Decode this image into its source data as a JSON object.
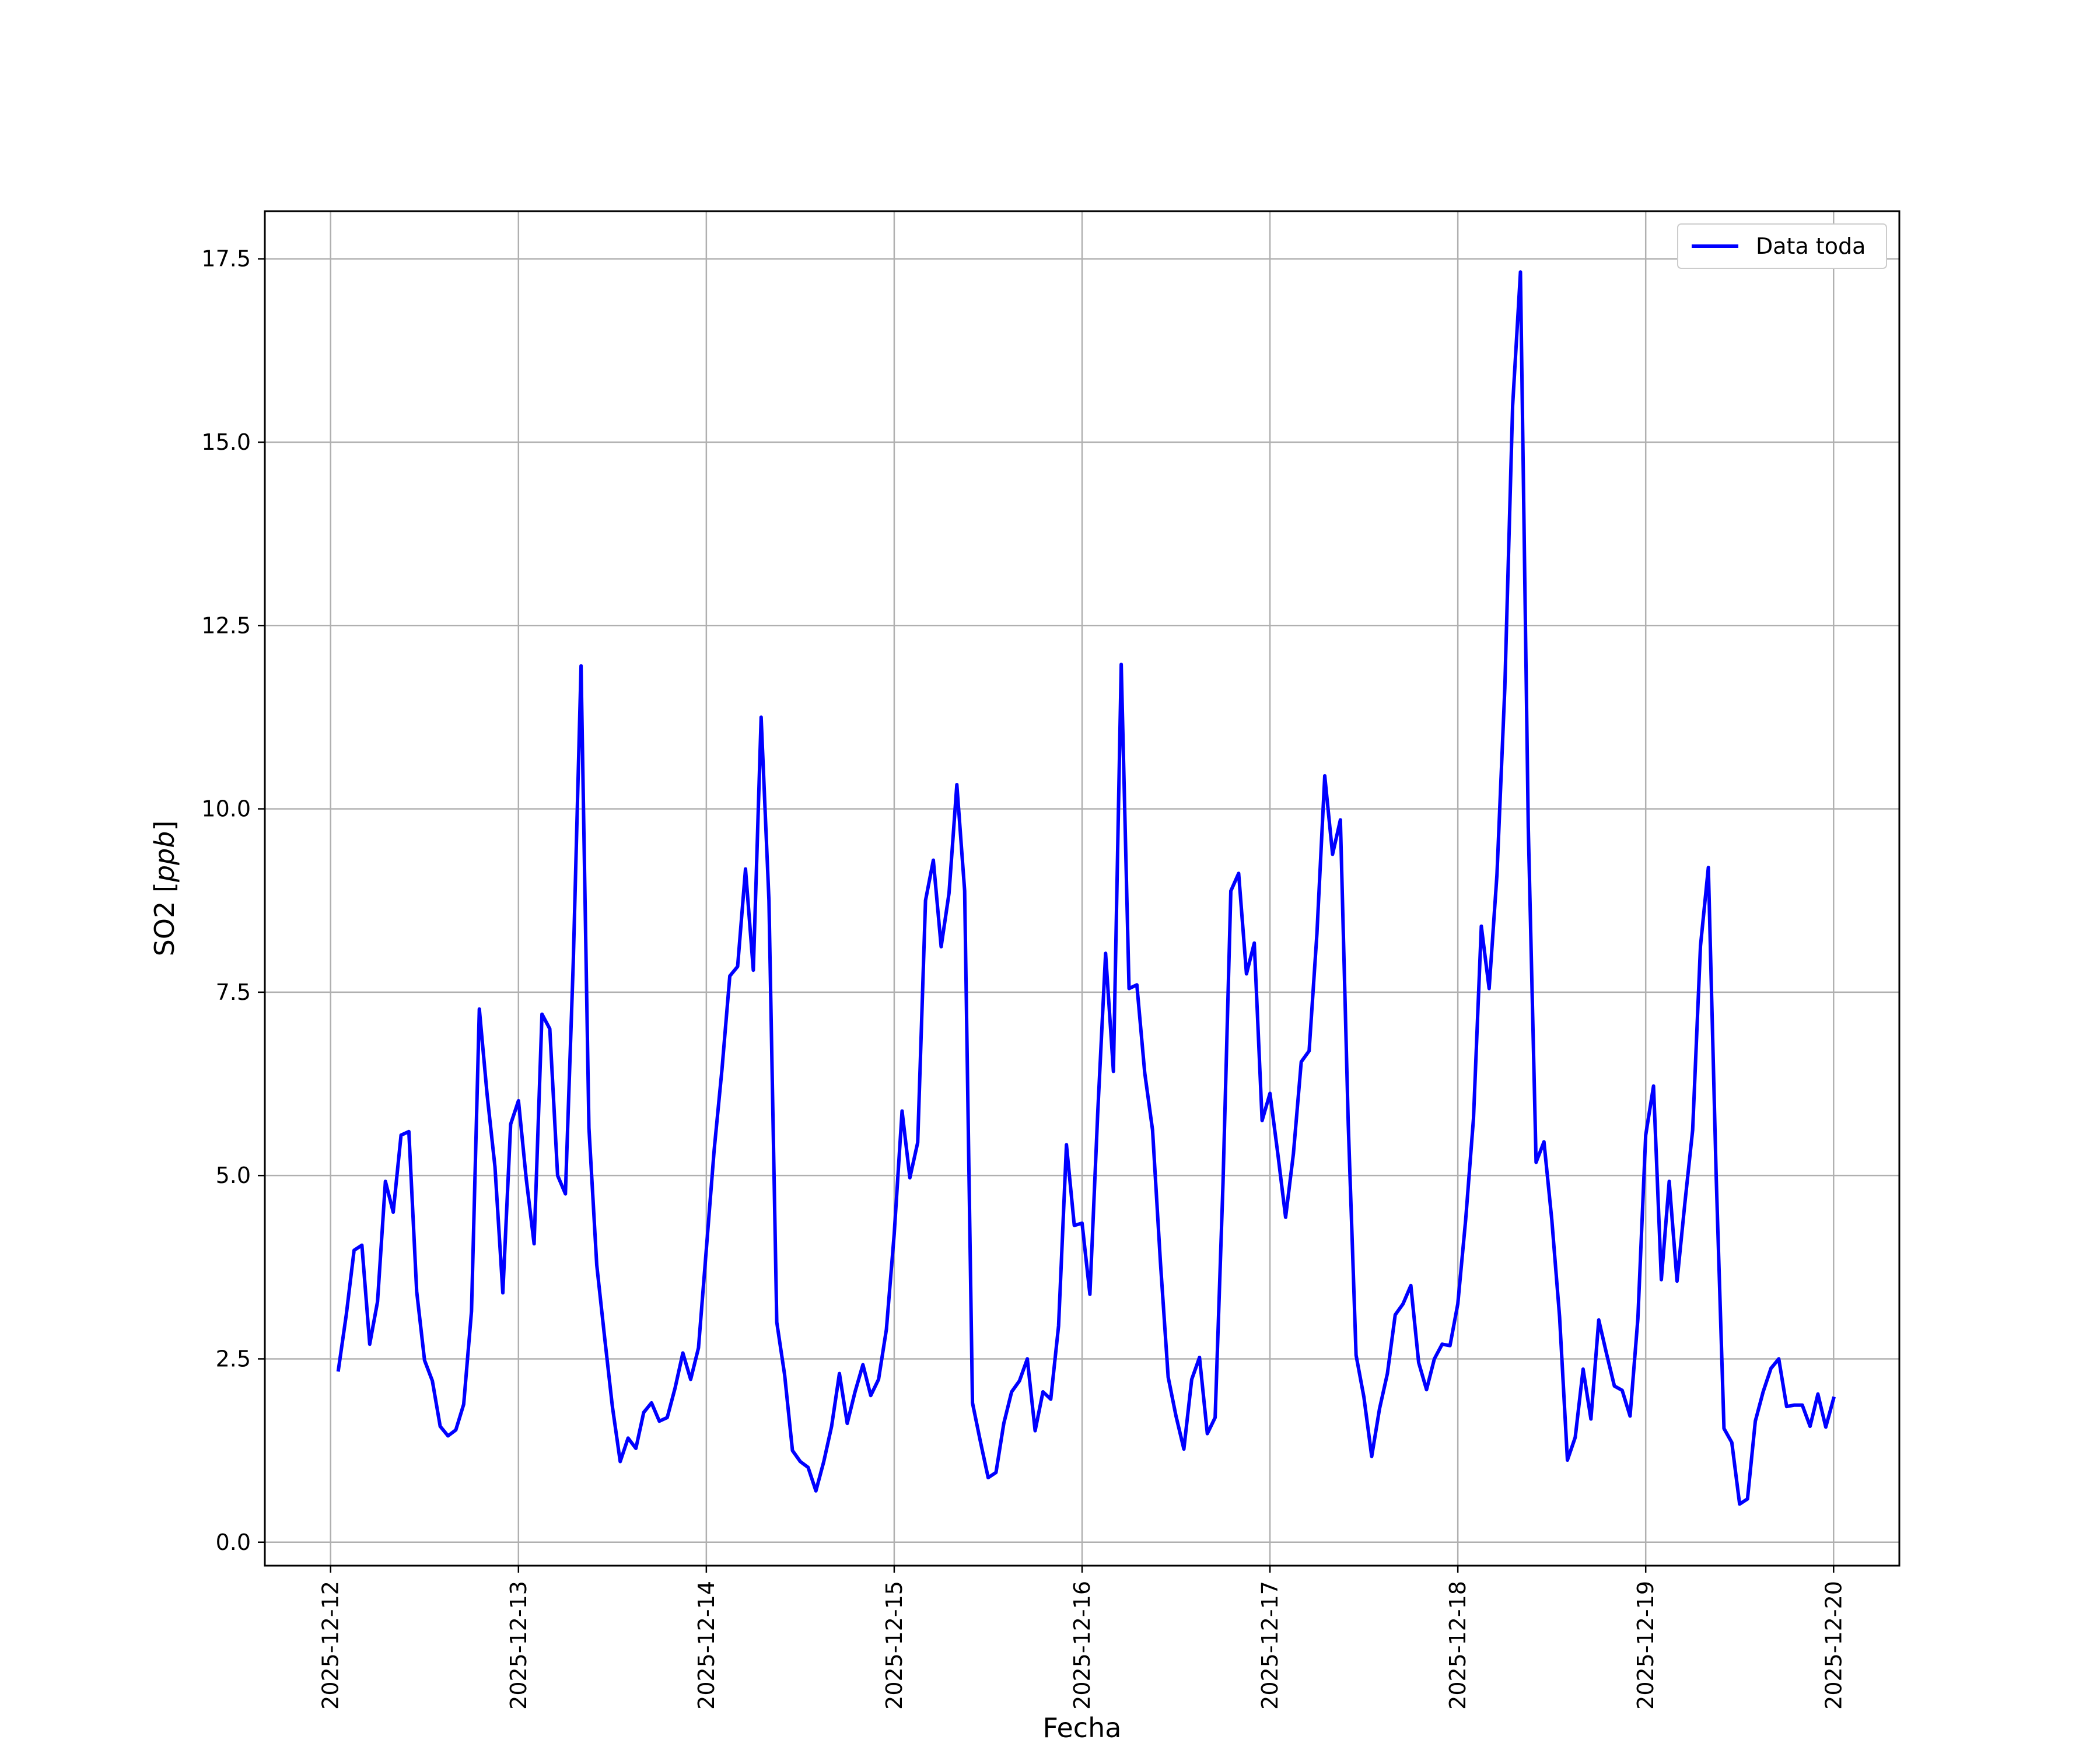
{
  "chart_data": {
    "type": "line",
    "title": "",
    "xlabel": "Fecha",
    "ylabel": "SO2 [ppb]",
    "ylabel_prefix": "SO2 [",
    "ylabel_unit": "ppb",
    "ylabel_suffix": "]",
    "xlim": [
      "2025-12-11T15:36",
      "2025-12-20T08:24"
    ],
    "ylim": [
      -0.32,
      18.15
    ],
    "x_ticks": [
      "2025-12-12",
      "2025-12-13",
      "2025-12-14",
      "2025-12-15",
      "2025-12-16",
      "2025-12-17",
      "2025-12-18",
      "2025-12-19",
      "2025-12-20"
    ],
    "y_ticks": [
      0.0,
      2.5,
      5.0,
      7.5,
      10.0,
      12.5,
      15.0,
      17.5
    ],
    "y_tick_labels": [
      "0.0",
      "2.5",
      "5.0",
      "7.5",
      "10.0",
      "12.5",
      "15.0",
      "17.5"
    ],
    "grid": true,
    "legend_position": "top-right",
    "colors": {
      "series": "#0000ff",
      "grid": "#b0b0b0",
      "frame": "#000000"
    },
    "series": [
      {
        "name": "Data toda",
        "x": [
          "2025-12-12T01:00",
          "2025-12-12T02:00",
          "2025-12-12T03:00",
          "2025-12-12T04:00",
          "2025-12-12T05:00",
          "2025-12-12T06:00",
          "2025-12-12T07:00",
          "2025-12-12T08:00",
          "2025-12-12T09:00",
          "2025-12-12T10:00",
          "2025-12-12T11:00",
          "2025-12-12T12:00",
          "2025-12-12T13:00",
          "2025-12-12T14:00",
          "2025-12-12T15:00",
          "2025-12-12T16:00",
          "2025-12-12T17:00",
          "2025-12-12T18:00",
          "2025-12-12T19:00",
          "2025-12-12T20:00",
          "2025-12-12T21:00",
          "2025-12-12T22:00",
          "2025-12-12T23:00",
          "2025-12-13T00:00",
          "2025-12-13T01:00",
          "2025-12-13T02:00",
          "2025-12-13T03:00",
          "2025-12-13T04:00",
          "2025-12-13T05:00",
          "2025-12-13T06:00",
          "2025-12-13T07:00",
          "2025-12-13T08:00",
          "2025-12-13T09:00",
          "2025-12-13T10:00",
          "2025-12-13T11:00",
          "2025-12-13T12:00",
          "2025-12-13T13:00",
          "2025-12-13T14:00",
          "2025-12-13T15:00",
          "2025-12-13T16:00",
          "2025-12-13T17:00",
          "2025-12-13T18:00",
          "2025-12-13T19:00",
          "2025-12-13T20:00",
          "2025-12-13T21:00",
          "2025-12-13T22:00",
          "2025-12-13T23:00",
          "2025-12-14T00:00",
          "2025-12-14T01:00",
          "2025-12-14T02:00",
          "2025-12-14T03:00",
          "2025-12-14T04:00",
          "2025-12-14T05:00",
          "2025-12-14T06:00",
          "2025-12-14T07:00",
          "2025-12-14T08:00",
          "2025-12-14T09:00",
          "2025-12-14T10:00",
          "2025-12-14T11:00",
          "2025-12-14T12:00",
          "2025-12-14T13:00",
          "2025-12-14T14:00",
          "2025-12-14T15:00",
          "2025-12-14T16:00",
          "2025-12-14T17:00",
          "2025-12-14T18:00",
          "2025-12-14T19:00",
          "2025-12-14T20:00",
          "2025-12-14T21:00",
          "2025-12-14T22:00",
          "2025-12-14T23:00",
          "2025-12-15T00:00",
          "2025-12-15T01:00",
          "2025-12-15T02:00",
          "2025-12-15T03:00",
          "2025-12-15T04:00",
          "2025-12-15T05:00",
          "2025-12-15T06:00",
          "2025-12-15T07:00",
          "2025-12-15T08:00",
          "2025-12-15T09:00",
          "2025-12-15T10:00",
          "2025-12-15T11:00",
          "2025-12-15T12:00",
          "2025-12-15T13:00",
          "2025-12-15T14:00",
          "2025-12-15T15:00",
          "2025-12-15T16:00",
          "2025-12-15T17:00",
          "2025-12-15T18:00",
          "2025-12-15T19:00",
          "2025-12-15T20:00",
          "2025-12-15T21:00",
          "2025-12-15T22:00",
          "2025-12-15T23:00",
          "2025-12-16T00:00",
          "2025-12-16T01:00",
          "2025-12-16T02:00",
          "2025-12-16T03:00",
          "2025-12-16T04:00",
          "2025-12-16T05:00",
          "2025-12-16T06:00",
          "2025-12-16T07:00",
          "2025-12-16T08:00",
          "2025-12-16T09:00",
          "2025-12-16T10:00",
          "2025-12-16T11:00",
          "2025-12-16T12:00",
          "2025-12-16T13:00",
          "2025-12-16T14:00",
          "2025-12-16T15:00",
          "2025-12-16T16:00",
          "2025-12-16T17:00",
          "2025-12-16T18:00",
          "2025-12-16T19:00",
          "2025-12-16T20:00",
          "2025-12-16T21:00",
          "2025-12-16T22:00",
          "2025-12-16T23:00",
          "2025-12-17T00:00",
          "2025-12-17T01:00",
          "2025-12-17T02:00",
          "2025-12-17T03:00",
          "2025-12-17T04:00",
          "2025-12-17T05:00",
          "2025-12-17T06:00",
          "2025-12-17T07:00",
          "2025-12-17T08:00",
          "2025-12-17T09:00",
          "2025-12-17T10:00",
          "2025-12-17T11:00",
          "2025-12-17T12:00",
          "2025-12-17T13:00",
          "2025-12-17T14:00",
          "2025-12-17T15:00",
          "2025-12-17T16:00",
          "2025-12-17T17:00",
          "2025-12-17T18:00",
          "2025-12-17T19:00",
          "2025-12-17T20:00",
          "2025-12-17T21:00",
          "2025-12-17T22:00",
          "2025-12-17T23:00",
          "2025-12-18T00:00",
          "2025-12-18T01:00",
          "2025-12-18T02:00",
          "2025-12-18T03:00",
          "2025-12-18T04:00",
          "2025-12-18T05:00",
          "2025-12-18T06:00",
          "2025-12-18T07:00",
          "2025-12-18T08:00",
          "2025-12-18T09:00",
          "2025-12-18T10:00",
          "2025-12-18T11:00",
          "2025-12-18T12:00",
          "2025-12-18T13:00",
          "2025-12-18T14:00",
          "2025-12-18T15:00",
          "2025-12-18T16:00",
          "2025-12-18T17:00",
          "2025-12-18T18:00",
          "2025-12-18T19:00",
          "2025-12-18T20:00",
          "2025-12-18T21:00",
          "2025-12-18T22:00",
          "2025-12-18T23:00",
          "2025-12-19T00:00",
          "2025-12-19T01:00",
          "2025-12-19T02:00",
          "2025-12-19T03:00",
          "2025-12-19T04:00",
          "2025-12-19T05:00",
          "2025-12-19T06:00",
          "2025-12-19T07:00",
          "2025-12-19T08:00",
          "2025-12-19T09:00",
          "2025-12-19T10:00",
          "2025-12-19T11:00",
          "2025-12-19T12:00",
          "2025-12-19T13:00",
          "2025-12-19T14:00",
          "2025-12-19T15:00",
          "2025-12-19T16:00",
          "2025-12-19T17:00",
          "2025-12-19T18:00",
          "2025-12-19T19:00",
          "2025-12-19T20:00",
          "2025-12-19T21:00",
          "2025-12-19T22:00",
          "2025-12-19T23:00",
          "2025-12-20T00:00"
        ],
        "values": [
          2.35,
          3.1,
          3.98,
          4.05,
          2.7,
          3.28,
          4.92,
          4.5,
          5.55,
          5.6,
          3.42,
          2.48,
          2.2,
          1.58,
          1.45,
          1.53,
          1.88,
          3.15,
          7.27,
          6.1,
          5.12,
          3.4,
          5.7,
          6.02,
          4.95,
          4.07,
          7.2,
          7.0,
          5.0,
          4.75,
          7.9,
          11.95,
          5.65,
          3.78,
          2.8,
          1.85,
          1.1,
          1.42,
          1.28,
          1.77,
          1.9,
          1.65,
          1.7,
          2.1,
          2.58,
          2.22,
          2.65,
          4.0,
          5.35,
          6.45,
          7.72,
          7.85,
          9.18,
          7.8,
          11.25,
          8.75,
          3.0,
          2.28,
          1.25,
          1.1,
          1.02,
          0.7,
          1.1,
          1.58,
          2.3,
          1.62,
          2.05,
          2.42,
          2.0,
          2.22,
          2.9,
          4.2,
          5.88,
          4.97,
          5.45,
          8.75,
          9.3,
          8.12,
          8.85,
          10.33,
          8.88,
          1.9,
          1.38,
          0.88,
          0.95,
          1.62,
          2.05,
          2.2,
          2.5,
          1.52,
          2.05,
          1.95,
          2.95,
          5.42,
          4.32,
          4.35,
          3.38,
          5.85,
          8.03,
          6.42,
          11.97,
          7.55,
          7.6,
          6.4,
          5.62,
          3.83,
          2.25,
          1.72,
          1.27,
          2.22,
          2.52,
          1.48,
          1.7,
          4.9,
          8.88,
          9.12,
          7.75,
          8.17,
          5.75,
          6.12,
          5.3,
          4.43,
          5.3,
          6.55,
          6.7,
          8.3,
          10.45,
          9.38,
          9.85,
          5.7,
          2.55,
          1.98,
          1.17,
          1.82,
          2.3,
          3.1,
          3.25,
          3.5,
          2.45,
          2.08,
          2.5,
          2.7,
          2.68,
          3.25,
          4.4,
          5.78,
          8.4,
          7.55,
          9.1,
          11.65,
          15.5,
          17.32,
          9.75,
          5.18,
          5.46,
          4.4,
          3.07,
          1.12,
          1.43,
          2.36,
          1.68,
          3.03,
          2.57,
          2.13,
          2.07,
          1.72,
          3.05,
          5.55,
          6.22,
          3.58,
          4.92,
          3.56,
          4.62,
          5.62,
          8.13,
          9.2,
          5.0,
          1.55,
          1.36,
          0.52,
          0.59,
          1.65,
          2.05,
          2.37,
          2.5,
          1.85,
          1.87,
          1.87,
          1.58,
          2.02,
          1.57,
          1.96
        ]
      }
    ]
  }
}
